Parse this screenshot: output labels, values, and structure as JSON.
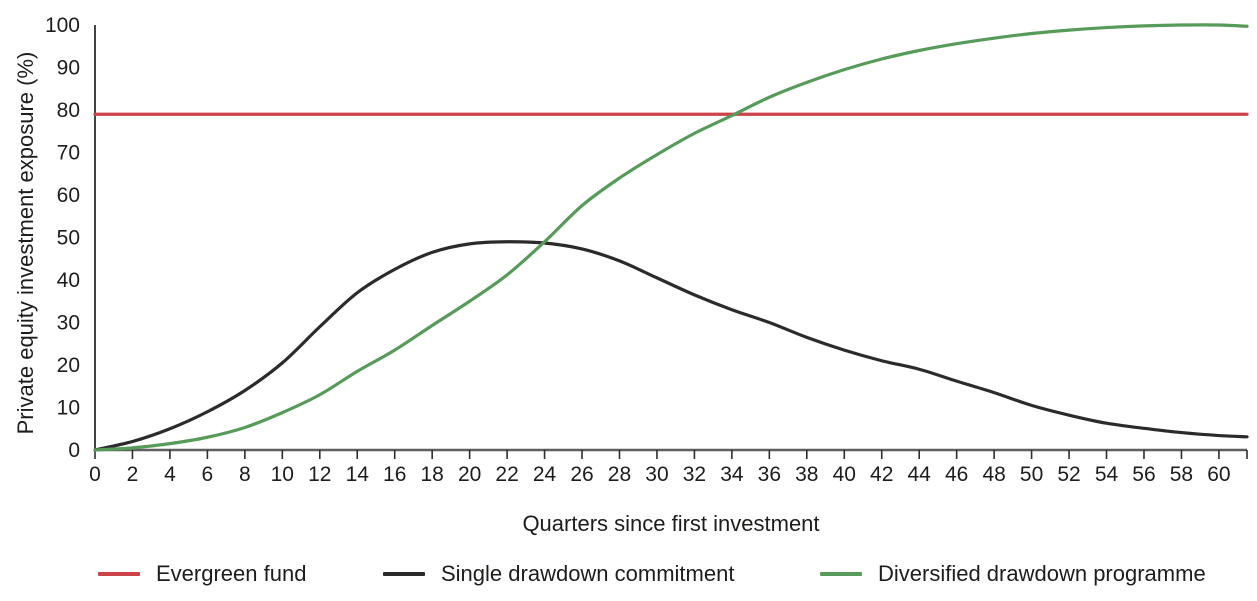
{
  "chart_data": {
    "type": "line",
    "title": "",
    "xlabel": "Quarters since first investment",
    "ylabel": "Private equity investment exposure (%)",
    "xlim": [
      0,
      61.5
    ],
    "ylim": [
      0,
      100
    ],
    "x_ticks": [
      0,
      2,
      4,
      6,
      8,
      10,
      12,
      14,
      16,
      18,
      20,
      22,
      24,
      26,
      28,
      30,
      32,
      34,
      36,
      38,
      40,
      42,
      44,
      46,
      48,
      50,
      52,
      54,
      56,
      58,
      60
    ],
    "y_ticks": [
      0,
      10,
      20,
      30,
      40,
      50,
      60,
      70,
      80,
      90,
      100
    ],
    "grid": false,
    "legend_position": "bottom",
    "x": [
      0,
      2,
      4,
      6,
      8,
      10,
      12,
      14,
      16,
      18,
      20,
      22,
      24,
      26,
      28,
      30,
      32,
      34,
      36,
      38,
      40,
      42,
      44,
      46,
      48,
      50,
      52,
      54,
      56,
      58,
      60,
      61.5
    ],
    "series": [
      {
        "name": "Evergreen fund",
        "color": "#cb4348",
        "values": [
          79,
          79,
          79,
          79,
          79,
          79,
          79,
          79,
          79,
          79,
          79,
          79,
          79,
          79,
          79,
          79,
          79,
          79,
          79,
          79,
          79,
          79,
          79,
          79,
          79,
          79,
          79,
          79,
          79,
          79,
          79,
          79
        ]
      },
      {
        "name": "Single drawdown commitment",
        "color": "#2b2b2b",
        "values": [
          0,
          2,
          5,
          9,
          14,
          20.5,
          29,
          37,
          42.5,
          46.5,
          48.5,
          49,
          48.7,
          47.3,
          44.5,
          40.5,
          36.5,
          33,
          30,
          26.5,
          23.5,
          21,
          19,
          16.2,
          13.5,
          10.5,
          8.2,
          6.3,
          5.1,
          4.1,
          3.4,
          3.1
        ]
      },
      {
        "name": "Diversified drawdown programme",
        "color": "#579b5b",
        "values": [
          0,
          0.5,
          1.5,
          3,
          5.3,
          8.8,
          13,
          18.5,
          23.5,
          29.3,
          35,
          41.2,
          49,
          57.5,
          64,
          69.5,
          74.5,
          78.7,
          83,
          86.5,
          89.5,
          92,
          94,
          95.6,
          96.9,
          98,
          98.8,
          99.4,
          99.8,
          100,
          100,
          99.7
        ]
      }
    ]
  },
  "axes": {
    "x_title": "Quarters since first investment",
    "y_title": "Private equity investment exposure (%)",
    "axis_line_color": "#5f5f5f",
    "tick_color": "#2e2e2e",
    "label_color": "#1d1d1b"
  }
}
